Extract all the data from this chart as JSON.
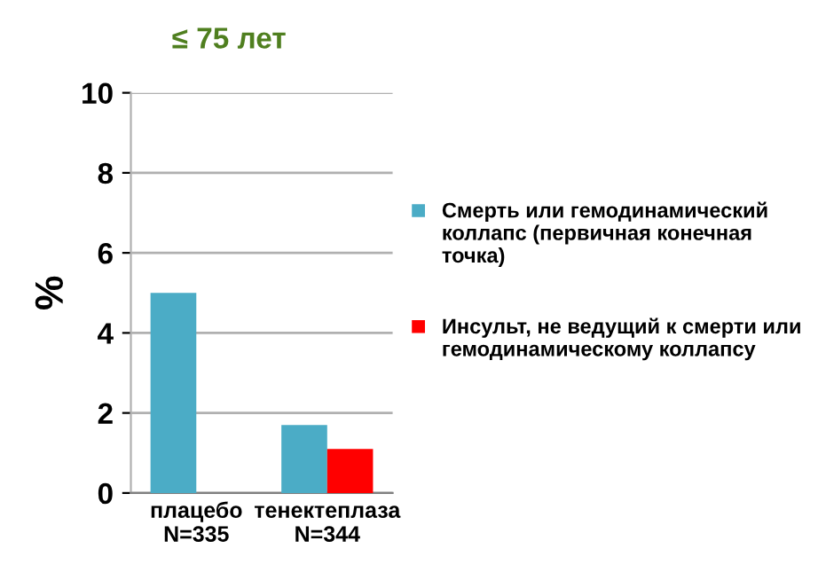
{
  "chart_data": {
    "type": "bar",
    "title": "≤ 75 лет",
    "ylabel": "%",
    "categories": [
      "плацебо\nN=335",
      "тенектеплаза\nN=344"
    ],
    "series": [
      {
        "name": "Смерть или гемодинамический коллапс (первичная конечная точка)",
        "color": "#4bacc6",
        "values": [
          5.0,
          1.7
        ]
      },
      {
        "name": "Инсульт, не ведущий к смерти или гемодинамическому коллапсу",
        "color": "#ff0000",
        "values": [
          0,
          1.1
        ]
      }
    ],
    "ylim": [
      0,
      10
    ],
    "yticks": [
      0,
      2,
      4,
      6,
      8,
      10
    ],
    "grid": "y",
    "legend": "right"
  }
}
